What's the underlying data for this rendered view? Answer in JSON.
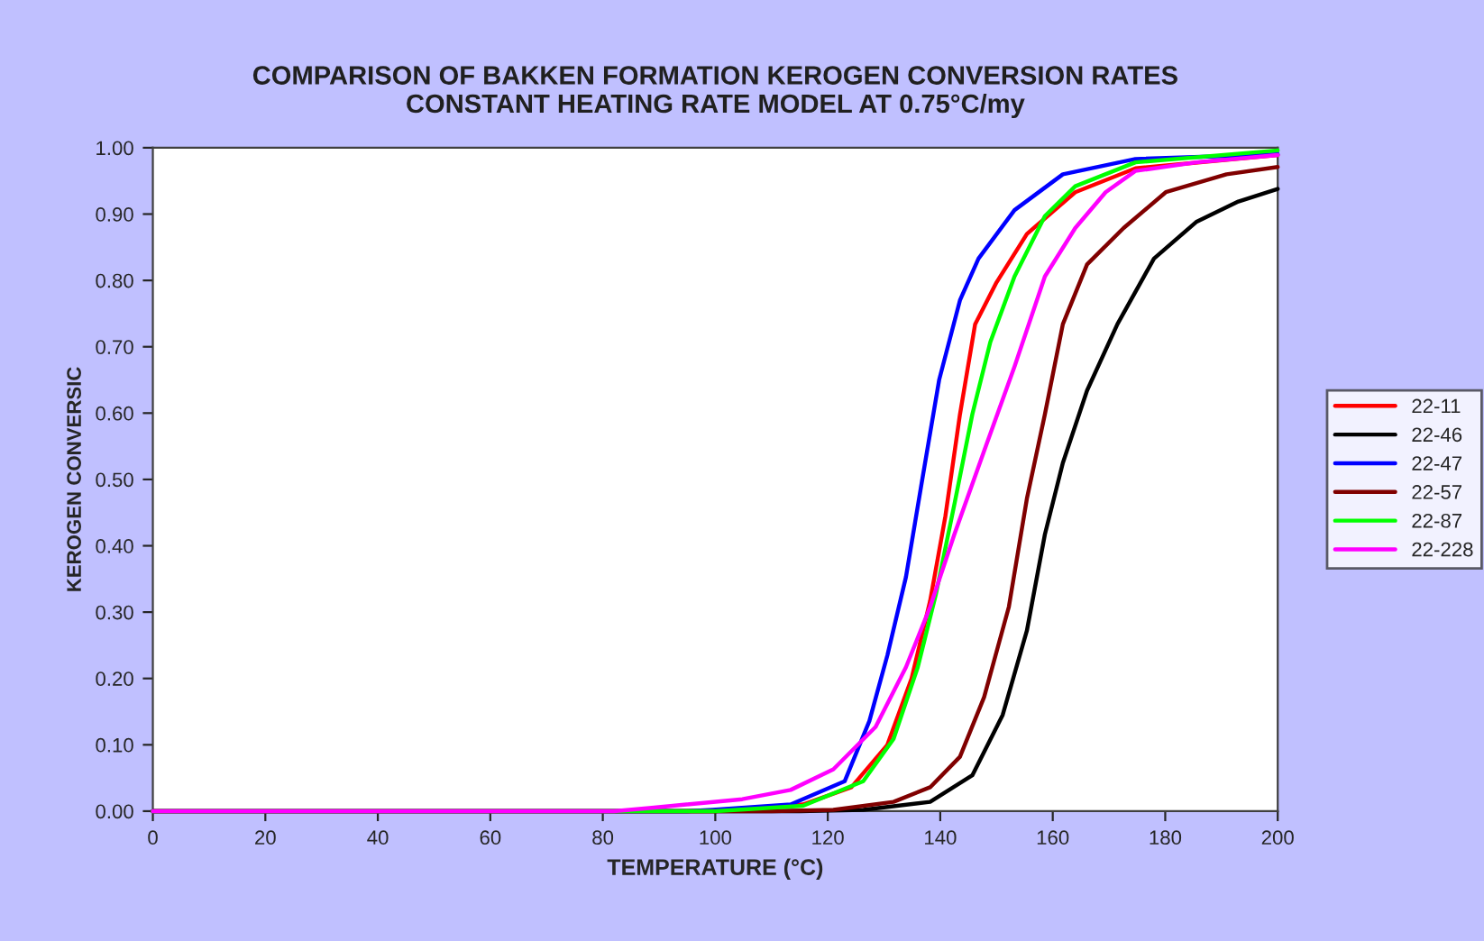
{
  "chart_data": {
    "type": "line",
    "title": "COMPARISON OF BAKKEN FORMATION KEROGEN CONVERSION RATES\nCONSTANT HEATING RATE MODEL AT 0.75°C/my",
    "xlabel": "TEMPERATURE (°C)",
    "ylabel": "KEROGEN CONVERSIC",
    "xlim": [
      0,
      200
    ],
    "xticks": [
      0,
      20,
      40,
      60,
      80,
      100,
      120,
      140,
      160,
      180,
      200
    ],
    "ylim": [
      0,
      1
    ],
    "yticks": [
      {
        "value": 0,
        "label": "0.00"
      },
      {
        "value": 0.1,
        "label": "0.10"
      },
      {
        "value": 0.2,
        "label": "0.20"
      },
      {
        "value": 0.3,
        "label": "0.30"
      },
      {
        "value": 0.4,
        "label": "0.40"
      },
      {
        "value": 0.5,
        "label": "0.50"
      },
      {
        "value": 0.6,
        "label": "0.60"
      },
      {
        "value": 0.7,
        "label": "0.70"
      },
      {
        "value": 0.8,
        "label": "0.80"
      },
      {
        "value": 0.9,
        "label": "0.90"
      },
      {
        "value": 1,
        "label": "1.00"
      }
    ],
    "grid": false,
    "legend": "right",
    "marker": "none",
    "line_style": "solid",
    "series": [
      {
        "name": "22-11",
        "color": "#ff0000",
        "x": [
          0,
          100,
          115.6,
          124.2,
          130.6,
          134.9,
          138.2,
          140.9,
          143.5,
          146.2,
          150,
          155.4,
          164,
          174.7,
          200
        ],
        "values": [
          0,
          0,
          0.01,
          0.036,
          0.1,
          0.2,
          0.317,
          0.444,
          0.598,
          0.734,
          0.797,
          0.87,
          0.933,
          0.969,
          0.989
        ]
      },
      {
        "name": "22-46",
        "color": "#000000",
        "x": [
          0,
          115,
          126.3,
          138.2,
          145.7,
          151.1,
          155.4,
          158.6,
          161.8,
          166.1,
          171.5,
          178,
          185.5,
          193,
          200
        ],
        "values": [
          0,
          0,
          0.002,
          0.014,
          0.054,
          0.145,
          0.272,
          0.417,
          0.525,
          0.634,
          0.734,
          0.833,
          0.888,
          0.919,
          0.938
        ]
      },
      {
        "name": "22-47",
        "color": "#0000ff",
        "x": [
          0,
          95,
          99.5,
          113.4,
          123,
          127.4,
          130.6,
          133.9,
          136.6,
          139.8,
          143.5,
          146.8,
          153.2,
          161.8,
          174.7,
          200
        ],
        "values": [
          0,
          0,
          0.002,
          0.01,
          0.045,
          0.136,
          0.235,
          0.353,
          0.49,
          0.65,
          0.77,
          0.833,
          0.906,
          0.96,
          0.983,
          0.99
        ]
      },
      {
        "name": "22-57",
        "color": "#800000",
        "x": [
          0,
          110,
          121,
          131.7,
          138.2,
          143.5,
          147.8,
          152.2,
          155.4,
          158.6,
          161.8,
          166.1,
          172.6,
          180.1,
          190.9,
          200
        ],
        "values": [
          0,
          0,
          0.002,
          0.014,
          0.036,
          0.082,
          0.172,
          0.308,
          0.471,
          0.598,
          0.734,
          0.824,
          0.879,
          0.933,
          0.96,
          0.971
        ]
      },
      {
        "name": "22-87",
        "color": "#00ff00",
        "x": [
          0,
          100,
          115.6,
          126.3,
          131.7,
          136,
          139.2,
          142.5,
          145.7,
          148.9,
          153.2,
          158.6,
          164,
          174.7,
          200
        ],
        "values": [
          0,
          0,
          0.008,
          0.045,
          0.109,
          0.217,
          0.326,
          0.462,
          0.598,
          0.707,
          0.806,
          0.897,
          0.942,
          0.978,
          0.996
        ]
      },
      {
        "name": "22-228",
        "color": "#ff00ff",
        "x": [
          0,
          82,
          88.7,
          104.8,
          113.4,
          121,
          128.5,
          133.9,
          138.2,
          142.5,
          147.8,
          153.2,
          158.6,
          164,
          169.4,
          174.7,
          185.5,
          200
        ],
        "values": [
          0,
          0,
          0.005,
          0.018,
          0.032,
          0.063,
          0.127,
          0.217,
          0.308,
          0.417,
          0.543,
          0.67,
          0.806,
          0.879,
          0.933,
          0.965,
          0.978,
          0.989
        ]
      }
    ]
  }
}
